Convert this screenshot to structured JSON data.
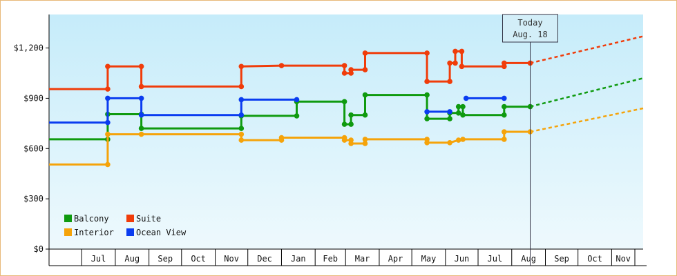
{
  "chart_data": {
    "type": "line",
    "title": "",
    "xlabel": "",
    "ylabel": "",
    "ylim": [
      0,
      1400
    ],
    "yticks": [
      {
        "value": 0,
        "label": "$0"
      },
      {
        "value": 300,
        "label": "$300"
      },
      {
        "value": 600,
        "label": "$600"
      },
      {
        "value": 900,
        "label": "$900"
      },
      {
        "value": 1200,
        "label": "$1,200"
      }
    ],
    "x_start": "2013-06-01",
    "x_end": "2014-11-30",
    "month_ticks": [
      {
        "date": "2013-07-01",
        "label": "Jul"
      },
      {
        "date": "2013-08-01",
        "label": "Aug"
      },
      {
        "date": "2013-09-01",
        "label": "Sep"
      },
      {
        "date": "2013-10-01",
        "label": "Oct"
      },
      {
        "date": "2013-11-01",
        "label": "Nov"
      },
      {
        "date": "2013-12-01",
        "label": "Dec"
      },
      {
        "date": "2014-01-01",
        "label": "Jan"
      },
      {
        "date": "2014-02-01",
        "label": "Feb"
      },
      {
        "date": "2014-03-01",
        "label": "Mar"
      },
      {
        "date": "2014-04-01",
        "label": "Apr"
      },
      {
        "date": "2014-05-01",
        "label": "May"
      },
      {
        "date": "2014-06-01",
        "label": "Jun"
      },
      {
        "date": "2014-07-01",
        "label": "Jul"
      },
      {
        "date": "2014-08-01",
        "label": "Aug"
      },
      {
        "date": "2014-09-01",
        "label": "Sep"
      },
      {
        "date": "2014-10-01",
        "label": "Oct"
      },
      {
        "date": "2014-11-01",
        "label": "Nov"
      }
    ],
    "today": {
      "date": "2014-08-18",
      "label_line1": "Today",
      "label_line2": "Aug. 18"
    },
    "grid": false,
    "legend_position": "bottom-left",
    "series": [
      {
        "name": "Balcony",
        "color": "#0f9a0f",
        "projection_end": 1020,
        "points": [
          [
            "2013-06-01",
            655
          ],
          [
            "2013-07-25",
            655
          ],
          [
            "2013-07-25",
            805
          ],
          [
            "2013-08-25",
            805
          ],
          [
            "2013-08-25",
            720
          ],
          [
            "2013-11-25",
            720
          ],
          [
            "2013-11-25",
            795
          ],
          [
            "2014-01-15",
            795
          ],
          [
            "2014-01-15",
            880
          ],
          [
            "2014-02-28",
            880
          ],
          [
            "2014-02-28",
            745
          ],
          [
            "2014-03-06",
            745
          ],
          [
            "2014-03-06",
            800
          ],
          [
            "2014-03-19",
            800
          ],
          [
            "2014-03-19",
            920
          ],
          [
            "2014-05-15",
            920
          ],
          [
            "2014-05-15",
            778
          ],
          [
            "2014-06-05",
            778
          ],
          [
            "2014-06-05",
            812
          ],
          [
            "2014-06-13",
            812
          ],
          [
            "2014-06-13",
            850
          ],
          [
            "2014-06-17",
            850
          ],
          [
            "2014-06-17",
            800
          ],
          [
            "2014-07-25",
            800
          ],
          [
            "2014-07-25",
            850
          ],
          [
            "2014-08-18",
            850
          ]
        ]
      },
      {
        "name": "Suite",
        "color": "#f03c0a",
        "projection_end": 1270,
        "points": [
          [
            "2013-06-01",
            955
          ],
          [
            "2013-07-25",
            955
          ],
          [
            "2013-07-25",
            1090
          ],
          [
            "2013-08-25",
            1090
          ],
          [
            "2013-08-25",
            970
          ],
          [
            "2013-11-25",
            970
          ],
          [
            "2013-11-25",
            1090
          ],
          [
            "2014-01-01",
            1095
          ],
          [
            "2014-02-28",
            1095
          ],
          [
            "2014-02-28",
            1050
          ],
          [
            "2014-03-06",
            1050
          ],
          [
            "2014-03-06",
            1070
          ],
          [
            "2014-03-19",
            1070
          ],
          [
            "2014-03-19",
            1170
          ],
          [
            "2014-05-15",
            1170
          ],
          [
            "2014-05-15",
            1000
          ],
          [
            "2014-06-05",
            1000
          ],
          [
            "2014-06-05",
            1110
          ],
          [
            "2014-06-10",
            1110
          ],
          [
            "2014-06-10",
            1180
          ],
          [
            "2014-06-16",
            1180
          ],
          [
            "2014-06-16",
            1090
          ],
          [
            "2014-07-25",
            1090
          ],
          [
            "2014-07-25",
            1110
          ],
          [
            "2014-08-18",
            1110
          ]
        ]
      },
      {
        "name": "Interior",
        "color": "#f5a30a",
        "projection_end": 840,
        "points": [
          [
            "2013-06-01",
            505
          ],
          [
            "2013-07-25",
            505
          ],
          [
            "2013-07-25",
            685
          ],
          [
            "2013-08-25",
            685
          ],
          [
            "2013-11-25",
            685
          ],
          [
            "2013-11-25",
            650
          ],
          [
            "2014-01-01",
            650
          ],
          [
            "2014-01-01",
            665
          ],
          [
            "2014-02-28",
            665
          ],
          [
            "2014-02-28",
            650
          ],
          [
            "2014-03-06",
            650
          ],
          [
            "2014-03-06",
            630
          ],
          [
            "2014-03-19",
            630
          ],
          [
            "2014-03-19",
            655
          ],
          [
            "2014-05-15",
            655
          ],
          [
            "2014-05-15",
            635
          ],
          [
            "2014-06-05",
            635
          ],
          [
            "2014-06-13",
            650
          ],
          [
            "2014-06-17",
            655
          ],
          [
            "2014-07-25",
            655
          ],
          [
            "2014-07-25",
            700
          ],
          [
            "2014-08-18",
            700
          ]
        ]
      },
      {
        "name": "Ocean View",
        "color": "#0a3cf0",
        "projection_end": null,
        "points": [
          [
            "2013-06-01",
            755
          ],
          [
            "2013-07-25",
            755
          ],
          [
            "2013-07-25",
            900
          ],
          [
            "2013-08-25",
            900
          ],
          [
            "2013-08-25",
            800
          ],
          [
            "2013-11-25",
            800
          ],
          [
            "2013-11-25",
            892
          ],
          [
            "2014-01-15",
            892
          ]
        ],
        "extra_segments": [
          [
            [
              "2014-05-15",
              820
            ],
            [
              "2014-06-05",
              820
            ]
          ],
          [
            [
              "2014-06-20",
              900
            ],
            [
              "2014-07-25",
              900
            ]
          ]
        ]
      }
    ]
  }
}
